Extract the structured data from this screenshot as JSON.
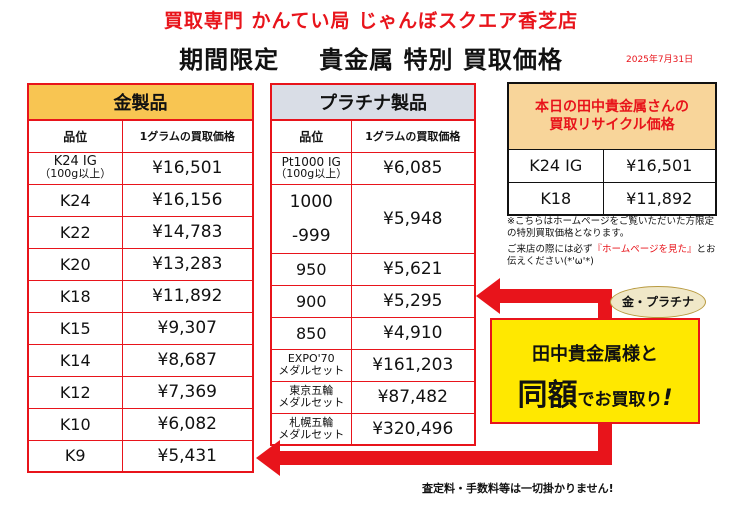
{
  "header": {
    "shop_title": "買取専門 かんてい局 じゃんぼスクエア香芝店",
    "headline_left": "期間限定",
    "headline_right": "貴金属 特別 買取価格",
    "date": "2025年7月31日"
  },
  "gold_table": {
    "caption": "金製品",
    "col_grade": "品位",
    "col_price": "1グラムの買取価格",
    "rows": [
      {
        "grade_line1": "K24 IG",
        "grade_line2": "（100g以上）",
        "price": "¥16,501"
      },
      {
        "grade_line1": "K24",
        "grade_line2": "",
        "price": "¥16,156"
      },
      {
        "grade_line1": "K22",
        "grade_line2": "",
        "price": "¥14,783"
      },
      {
        "grade_line1": "K20",
        "grade_line2": "",
        "price": "¥13,283"
      },
      {
        "grade_line1": "K18",
        "grade_line2": "",
        "price": "¥11,892"
      },
      {
        "grade_line1": "K15",
        "grade_line2": "",
        "price": "¥9,307"
      },
      {
        "grade_line1": "K14",
        "grade_line2": "",
        "price": "¥8,687"
      },
      {
        "grade_line1": "K12",
        "grade_line2": "",
        "price": "¥7,369"
      },
      {
        "grade_line1": "K10",
        "grade_line2": "",
        "price": "¥6,082"
      },
      {
        "grade_line1": "K9",
        "grade_line2": "",
        "price": "¥5,431"
      }
    ]
  },
  "platinum_table": {
    "caption": "プラチナ製品",
    "col_grade": "品位",
    "col_price": "1グラムの買取価格",
    "row_pt1000_line1": "Pt1000 IG",
    "row_pt1000_line2": "（100g以上）",
    "row_pt1000_price": "¥6,085",
    "row_1000_a": "1000",
    "row_1000_b": "-999",
    "row_1000_price": "¥5,948",
    "rows": [
      {
        "grade": "950",
        "price": "¥5,621"
      },
      {
        "grade": "900",
        "price": "¥5,295"
      },
      {
        "grade": "850",
        "price": "¥4,910"
      }
    ],
    "medals": [
      {
        "line1": "EXPO'70",
        "line2": "メダルセット",
        "price": "¥161,203"
      },
      {
        "line1": "東京五輪",
        "line2": "メダルセット",
        "price": "¥87,482"
      },
      {
        "line1": "札幌五輪",
        "line2": "メダルセット",
        "price": "¥320,496"
      }
    ]
  },
  "today_box": {
    "heading_line1": "本日の田中貴金属さんの",
    "heading_line2": "買取リサイクル価格",
    "rows": [
      {
        "grade": "K24 IG",
        "price": "¥16,501"
      },
      {
        "grade": "K18",
        "price": "¥11,892"
      }
    ]
  },
  "notes": {
    "note1": "※こちらはホームページをご覧いただいた方限定の特別買取価格となります。",
    "note2_prefix": "ご来店の際には必ず",
    "note2_red": "『ホームページを見た』",
    "note2_suffix": "とお伝えください(*'ω'*)"
  },
  "promo": {
    "badge": "金・プラチナ",
    "line1": "田中貴金属様と",
    "big": "同額",
    "mid": "でお買取り",
    "ex": "!"
  },
  "footer": {
    "note": "査定料・手数料等は一切掛かりません!"
  },
  "colors": {
    "accent_red": "#e8141b",
    "gold_header": "#f8c552",
    "platinum_header": "#d9dde6",
    "promo_yellow": "#ffe800"
  }
}
